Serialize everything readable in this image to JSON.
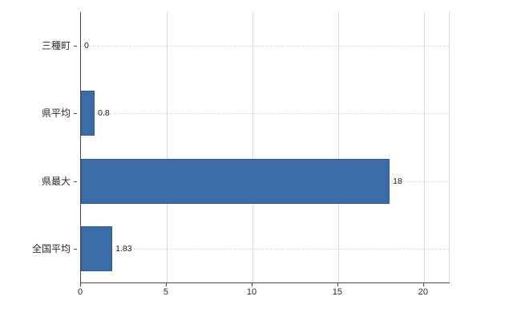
{
  "chart_data": {
    "type": "bar",
    "orientation": "horizontal",
    "title": "",
    "xlabel": "",
    "ylabel": "",
    "categories": [
      "三種町",
      "県平均",
      "県最大",
      "全国平均"
    ],
    "values": [
      0,
      0.8,
      18,
      1.83
    ],
    "value_labels": [
      "0",
      "0.8",
      "18",
      "1.83"
    ],
    "x_ticks": [
      0,
      5,
      10,
      15,
      20
    ],
    "x_tick_labels": [
      "0",
      "5",
      "10",
      "15",
      "20"
    ],
    "xlim": [
      0,
      21.5
    ],
    "grid": true,
    "legend": false,
    "colors": {
      "bar_fill": "#3b6ca5",
      "bar_border": "#2e5a8f",
      "axis": "#4a4a4a",
      "gridline": "#d9d9d9",
      "text": "#2b2b2b",
      "background": "#ffffff"
    }
  }
}
